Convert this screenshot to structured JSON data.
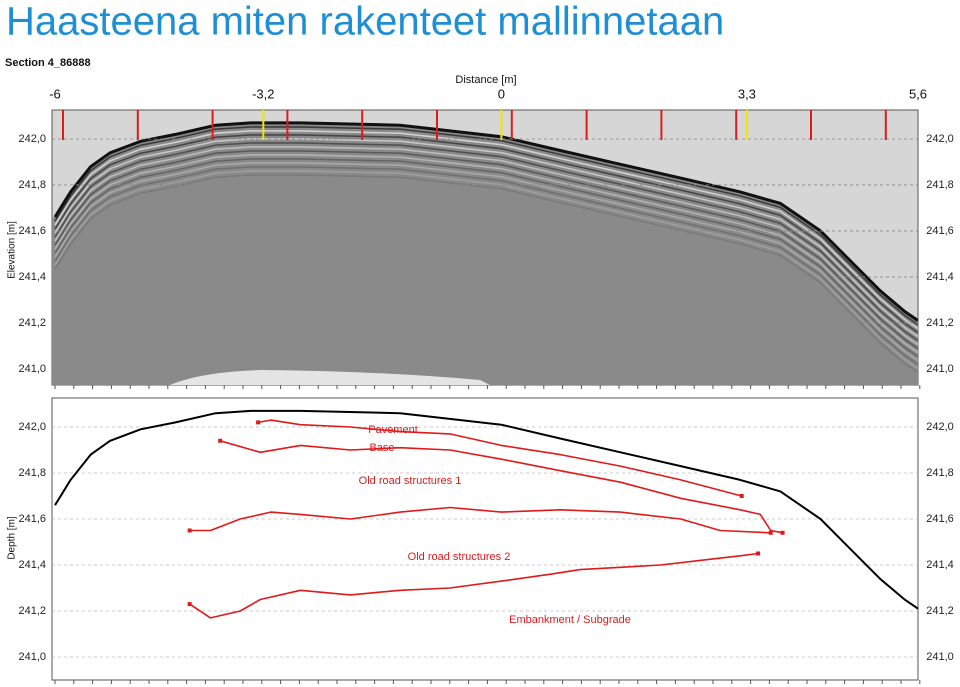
{
  "title": "Haasteena miten rakenteet mallinnetaan",
  "section": "Section 4_86888",
  "chart_data": [
    {
      "type": "radargram",
      "xlabel": "Distance [m]",
      "ylabel": "Elevation [m]",
      "xlim": [
        -6,
        5.6
      ],
      "xticks": [
        -6,
        {
          "value": -3.2,
          "label": "-3,2"
        },
        0,
        {
          "value": 3.3,
          "label": "3,3"
        },
        {
          "value": 5.6,
          "label": "5,6"
        }
      ],
      "ylim": [
        240.93,
        242.126
      ],
      "yticks": [
        {
          "value": 242.0,
          "label": "242,0"
        },
        {
          "value": 241.8,
          "label": "241,8"
        },
        {
          "value": 241.6,
          "label": "241,6"
        },
        {
          "value": 241.4,
          "label": "241,4"
        },
        {
          "value": 241.2,
          "label": "241,2"
        },
        {
          "value": 241.0,
          "label": "241,0"
        }
      ],
      "grid": true
    },
    {
      "type": "line",
      "ylabel": "Depth [m]",
      "xlim": [
        -6,
        5.6
      ],
      "ylim": [
        240.9,
        242.126
      ],
      "yticks": [
        {
          "value": 242.0,
          "label": "242,0"
        },
        {
          "value": 241.8,
          "label": "241,8"
        },
        {
          "value": 241.6,
          "label": "241,6"
        },
        {
          "value": 241.4,
          "label": "241,4"
        },
        {
          "value": 241.2,
          "label": "241,2"
        },
        {
          "value": 241.0,
          "label": "241,0"
        }
      ],
      "grid": true,
      "series": [
        {
          "color": "#000000",
          "x": [
            -6.0,
            -5.79,
            -5.52,
            -5.26,
            -4.85,
            -4.38,
            -3.84,
            -3.37,
            -2.7,
            -1.36,
            0.0,
            0.79,
            1.6,
            2.41,
            3.21,
            3.75,
            4.29,
            4.69,
            5.09,
            5.42,
            5.6
          ],
          "values": [
            241.66,
            241.77,
            241.88,
            241.94,
            241.99,
            242.02,
            242.06,
            242.07,
            242.07,
            242.06,
            242.01,
            241.95,
            241.89,
            241.83,
            241.77,
            241.72,
            241.6,
            241.47,
            241.34,
            241.25,
            241.21
          ]
        },
        {
          "color": "#e0191b",
          "x": [
            -3.27,
            -3.1,
            -2.7,
            -2.03,
            -1.36,
            -0.69,
            0.0,
            0.79,
            1.6,
            2.41,
            3.23
          ],
          "values": [
            242.02,
            242.03,
            242.01,
            242.0,
            241.98,
            241.97,
            241.92,
            241.88,
            241.83,
            241.77,
            241.7
          ]
        },
        {
          "color": "#e0191b",
          "x": [
            -3.78,
            -3.24,
            -2.7,
            -2.03,
            -1.36,
            -0.69,
            0.0,
            0.79,
            1.6,
            2.41,
            3.21,
            3.48,
            3.62,
            3.78
          ],
          "values": [
            241.94,
            241.89,
            241.92,
            241.9,
            241.91,
            241.9,
            241.86,
            241.81,
            241.76,
            241.69,
            241.64,
            241.62,
            241.55,
            241.54
          ]
        },
        {
          "color": "#e0191b",
          "x": [
            -4.19,
            -3.91,
            -3.51,
            -3.1,
            -2.7,
            -2.03,
            -1.36,
            -0.69,
            0.0,
            0.79,
            1.6,
            2.41,
            2.94,
            3.62
          ],
          "values": [
            241.55,
            241.55,
            241.6,
            241.63,
            241.62,
            241.6,
            241.63,
            241.65,
            241.63,
            241.64,
            241.63,
            241.6,
            241.55,
            241.54
          ]
        },
        {
          "color": "#e0191b",
          "x": [
            -4.19,
            -3.91,
            -3.51,
            -3.24,
            -2.7,
            -2.03,
            -1.36,
            -0.69,
            0.0,
            0.66,
            1.06,
            1.6,
            2.14,
            2.67,
            3.21,
            3.45
          ],
          "values": [
            241.23,
            241.17,
            241.2,
            241.25,
            241.29,
            241.27,
            241.29,
            241.3,
            241.33,
            241.36,
            241.38,
            241.39,
            241.4,
            241.42,
            241.44,
            241.45
          ]
        }
      ],
      "annotations": [
        "Pavement",
        "Base",
        "Old road structures 1",
        "Old road structures 2",
        "Embankment / Subgrade"
      ]
    }
  ]
}
